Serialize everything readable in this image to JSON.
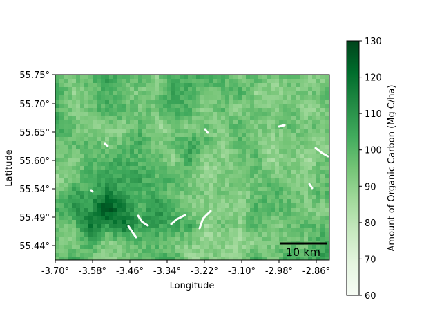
{
  "map": {
    "xlabel": "Longitude",
    "ylabel": "Latitude",
    "x_ticks": [
      "-3.70°",
      "-3.58°",
      "-3.46°",
      "-3.34°",
      "-3.22°",
      "-3.10°",
      "-2.98°",
      "-2.86°"
    ],
    "y_ticks": [
      "55.75°",
      "55.70°",
      "55.65°",
      "55.60°",
      "55.54°",
      "55.49°",
      "55.44°"
    ],
    "scalebar_label": "10 km",
    "colorbar": {
      "label": "Amount of Organic Carbon (Mg C/ha)",
      "ticks": [
        "130",
        "120",
        "110",
        "100",
        "90",
        "80",
        "70",
        "60"
      ],
      "min": 60,
      "max": 130,
      "colormap": "Greens",
      "colors": [
        "#f7fcf5",
        "#e5f5e0",
        "#c7e9c0",
        "#a1d99b",
        "#74c476",
        "#41ab5d",
        "#238b45",
        "#006d2c",
        "#00441b"
      ]
    },
    "raster": {
      "mean_value": 97,
      "dark_region": "southwest"
    }
  }
}
